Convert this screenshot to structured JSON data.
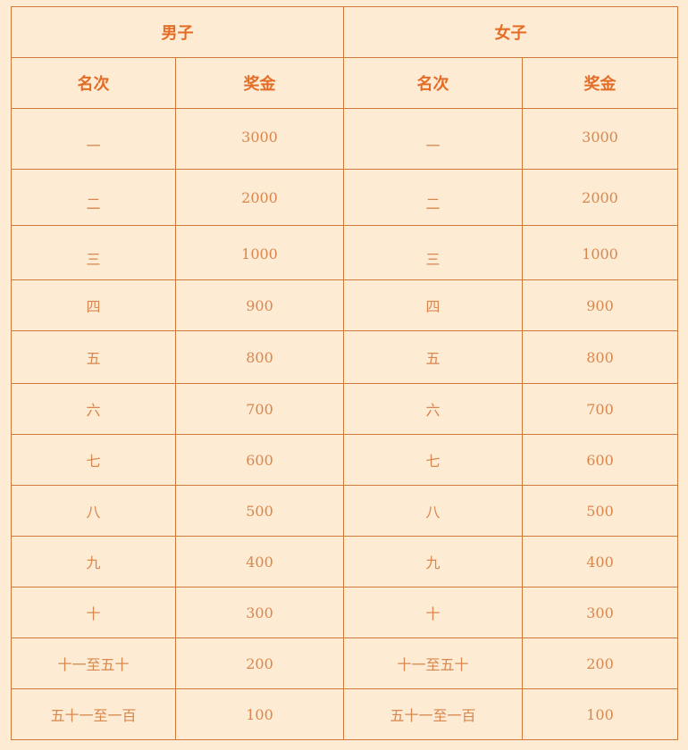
{
  "groups": [
    {
      "title": "男子",
      "col_rank": "名次",
      "col_prize": "奖金"
    },
    {
      "title": "女子",
      "col_rank": "名次",
      "col_prize": "奖金"
    }
  ],
  "rows": [
    {
      "rank": "一",
      "prize": "3000"
    },
    {
      "rank": "二",
      "prize": "2000"
    },
    {
      "rank": "三",
      "prize": "1000"
    },
    {
      "rank": "四",
      "prize": "900"
    },
    {
      "rank": "五",
      "prize": "800"
    },
    {
      "rank": "六",
      "prize": "700"
    },
    {
      "rank": "七",
      "prize": "600"
    },
    {
      "rank": "八",
      "prize": "500"
    },
    {
      "rank": "九",
      "prize": "400"
    },
    {
      "rank": "十",
      "prize": "300"
    },
    {
      "rank": "十一至五十",
      "prize": "200"
    },
    {
      "rank": "五十一至一百",
      "prize": "100"
    }
  ],
  "colors": {
    "background": "#fdebd3",
    "border": "#cd7a3c",
    "header_text": "#e36d27",
    "body_text": "#d8874e"
  }
}
